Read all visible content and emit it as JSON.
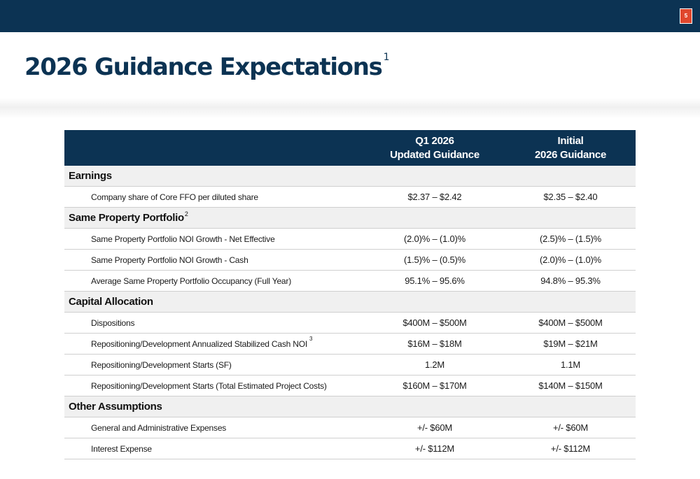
{
  "page": {
    "number": "5",
    "title": "2026 Guidance Expectations",
    "title_footnote": "1"
  },
  "colors": {
    "navy": "#0c3353",
    "accent": "#e0472d"
  },
  "table": {
    "headers": {
      "col1_line1": "Q1 2026",
      "col1_line2": "Updated Guidance",
      "col2_line1": "Initial",
      "col2_line2": "2026 Guidance"
    },
    "sections": [
      {
        "title": "Earnings",
        "footnote": "",
        "rows": [
          {
            "label": "Company share of Core FFO per diluted share",
            "footnote": "",
            "updated": "$2.37 – $2.42",
            "initial": "$2.35 – $2.40"
          }
        ]
      },
      {
        "title": "Same Property Portfolio",
        "footnote": "2",
        "rows": [
          {
            "label": "Same Property Portfolio NOI Growth - Net Effective",
            "footnote": "",
            "updated": "(2.0)% – (1.0)%",
            "initial": "(2.5)% – (1.5)%"
          },
          {
            "label": "Same Property Portfolio NOI Growth - Cash",
            "footnote": "",
            "updated": "(1.5)% – (0.5)%",
            "initial": "(2.0)% – (1.0)%"
          },
          {
            "label": "Average Same Property Portfolio Occupancy (Full Year)",
            "footnote": "",
            "updated": "95.1% – 95.6%",
            "initial": "94.8% – 95.3%"
          }
        ]
      },
      {
        "title": "Capital Allocation",
        "footnote": "",
        "rows": [
          {
            "label": "Dispositions",
            "footnote": "",
            "updated": "$400M – $500M",
            "initial": "$400M – $500M"
          },
          {
            "label": "Repositioning/Development Annualized Stabilized Cash NOI",
            "footnote": "3",
            "updated": "$16M – $18M",
            "initial": "$19M – $21M"
          },
          {
            "label": "Repositioning/Development Starts (SF)",
            "footnote": "",
            "updated": "1.2M",
            "initial": "1.1M"
          },
          {
            "label": "Repositioning/Development Starts (Total Estimated Project Costs)",
            "footnote": "",
            "updated": "$160M – $170M",
            "initial": "$140M – $150M"
          }
        ]
      },
      {
        "title": "Other Assumptions",
        "footnote": "",
        "rows": [
          {
            "label": "General and Administrative Expenses",
            "footnote": "",
            "updated": "+/- $60M",
            "initial": "+/- $60M"
          },
          {
            "label": "Interest Expense",
            "footnote": "",
            "updated": "+/- $112M",
            "initial": "+/- $112M"
          }
        ]
      }
    ]
  }
}
